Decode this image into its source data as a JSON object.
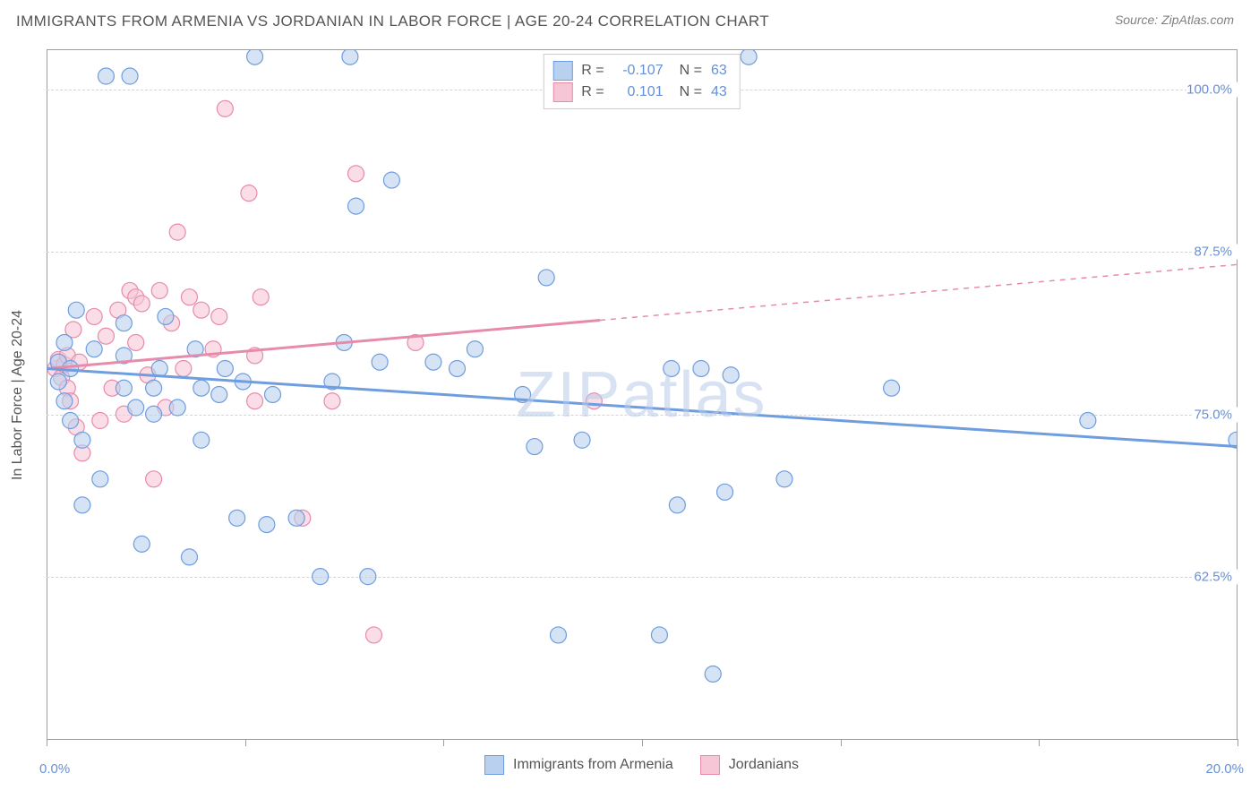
{
  "title": "IMMIGRANTS FROM ARMENIA VS JORDANIAN IN LABOR FORCE | AGE 20-24 CORRELATION CHART",
  "source_label": "Source: ZipAtlas.com",
  "watermark": "ZIPatlas",
  "y_axis_label": "In Labor Force | Age 20-24",
  "x_corner_left": "0.0%",
  "x_corner_right": "20.0%",
  "chart": {
    "type": "scatter",
    "background_color": "#ffffff",
    "grid_color": "#d4d4d4",
    "axis_color": "#9e9e9e",
    "tick_label_color": "#6690d8",
    "y_ticks": [
      {
        "value": 62.5,
        "label": "62.5%"
      },
      {
        "value": 75.0,
        "label": "75.0%"
      },
      {
        "value": 87.5,
        "label": "87.5%"
      },
      {
        "value": 100.0,
        "label": "100.0%"
      }
    ],
    "x_ticks_pct": [
      0,
      16.7,
      33.3,
      50,
      66.7,
      83.3,
      100
    ],
    "xlim": [
      0,
      20
    ],
    "ylim": [
      50,
      103
    ],
    "marker_radius": 9,
    "marker_stroke_width": 1.2,
    "marker_fill_opacity": 0.35,
    "trend_line_width": 3,
    "series": [
      {
        "name": "Immigrants from Armenia",
        "color_stroke": "#6e9de0",
        "color_fill": "#b9d0ee",
        "R": "-0.107",
        "N": "63",
        "trend": {
          "x1": 0,
          "y1": 78.5,
          "x2": 20,
          "y2": 72.5,
          "dashed_from_x": null
        },
        "points": [
          [
            0.2,
            79
          ],
          [
            0.2,
            77.5
          ],
          [
            0.3,
            76
          ],
          [
            0.4,
            74.5
          ],
          [
            0.3,
            80.5
          ],
          [
            0.4,
            78.5
          ],
          [
            0.5,
            83
          ],
          [
            0.6,
            73
          ],
          [
            0.6,
            68
          ],
          [
            0.8,
            80
          ],
          [
            0.9,
            70
          ],
          [
            1.0,
            101
          ],
          [
            1.3,
            82
          ],
          [
            1.3,
            79.5
          ],
          [
            1.3,
            77
          ],
          [
            1.4,
            101
          ],
          [
            1.5,
            75.5
          ],
          [
            1.6,
            65
          ],
          [
            1.8,
            77
          ],
          [
            1.8,
            75
          ],
          [
            1.9,
            78.5
          ],
          [
            2.0,
            82.5
          ],
          [
            2.2,
            75.5
          ],
          [
            2.4,
            64
          ],
          [
            2.5,
            80
          ],
          [
            2.6,
            77
          ],
          [
            2.6,
            73
          ],
          [
            2.9,
            76.5
          ],
          [
            3.0,
            78.5
          ],
          [
            3.2,
            67
          ],
          [
            3.3,
            77.5
          ],
          [
            3.5,
            102.5
          ],
          [
            3.7,
            66.5
          ],
          [
            3.8,
            76.5
          ],
          [
            4.2,
            67
          ],
          [
            4.6,
            62.5
          ],
          [
            4.8,
            77.5
          ],
          [
            5.0,
            80.5
          ],
          [
            5.1,
            102.5
          ],
          [
            5.2,
            91
          ],
          [
            5.4,
            62.5
          ],
          [
            5.6,
            79
          ],
          [
            5.8,
            93
          ],
          [
            6.5,
            79
          ],
          [
            6.9,
            78.5
          ],
          [
            7.2,
            80
          ],
          [
            8.0,
            76.5
          ],
          [
            8.2,
            72.5
          ],
          [
            8.4,
            85.5
          ],
          [
            8.6,
            58
          ],
          [
            9.0,
            73
          ],
          [
            10.3,
            58
          ],
          [
            10.5,
            78.5
          ],
          [
            10.6,
            68
          ],
          [
            11.0,
            78.5
          ],
          [
            11.2,
            55
          ],
          [
            11.4,
            69
          ],
          [
            11.5,
            78
          ],
          [
            11.8,
            102.5
          ],
          [
            12.4,
            70
          ],
          [
            14.2,
            77
          ],
          [
            17.5,
            74.5
          ],
          [
            20,
            73
          ]
        ]
      },
      {
        "name": "Jordanians",
        "color_stroke": "#e78bab",
        "color_fill": "#f6c6d6",
        "R": "0.101",
        "N": "43",
        "trend": {
          "x1": 0,
          "y1": 78.5,
          "x2": 20,
          "y2": 86.5,
          "dashed_from_x": 9.3
        },
        "points": [
          [
            0.15,
            78.5
          ],
          [
            0.2,
            79.2
          ],
          [
            0.25,
            77.8
          ],
          [
            0.3,
            78.8
          ],
          [
            0.35,
            79.5
          ],
          [
            0.35,
            77
          ],
          [
            0.4,
            76
          ],
          [
            0.45,
            81.5
          ],
          [
            0.5,
            74
          ],
          [
            0.55,
            79
          ],
          [
            0.6,
            72
          ],
          [
            0.8,
            82.5
          ],
          [
            0.9,
            74.5
          ],
          [
            1.0,
            81
          ],
          [
            1.1,
            77
          ],
          [
            1.2,
            83
          ],
          [
            1.3,
            75
          ],
          [
            1.4,
            84.5
          ],
          [
            1.5,
            84
          ],
          [
            1.5,
            80.5
          ],
          [
            1.6,
            83.5
          ],
          [
            1.7,
            78
          ],
          [
            1.8,
            70
          ],
          [
            1.9,
            84.5
          ],
          [
            2.0,
            75.5
          ],
          [
            2.1,
            82
          ],
          [
            2.2,
            89
          ],
          [
            2.3,
            78.5
          ],
          [
            2.4,
            84
          ],
          [
            2.6,
            83
          ],
          [
            2.8,
            80
          ],
          [
            2.9,
            82.5
          ],
          [
            3.0,
            98.5
          ],
          [
            3.4,
            92
          ],
          [
            3.5,
            76
          ],
          [
            3.5,
            79.5
          ],
          [
            3.6,
            84
          ],
          [
            4.3,
            67
          ],
          [
            4.8,
            76
          ],
          [
            5.2,
            93.5
          ],
          [
            5.5,
            58
          ],
          [
            6.2,
            80.5
          ],
          [
            9.2,
            76
          ]
        ]
      }
    ]
  },
  "legend_top": {
    "rows": [
      {
        "swatch_stroke": "#6e9de0",
        "swatch_fill": "#b9d0ee",
        "r_label": "R =",
        "r_val": "-0.107",
        "n_label": "N =",
        "n_val": "63"
      },
      {
        "swatch_stroke": "#e78bab",
        "swatch_fill": "#f6c6d6",
        "r_label": "R =",
        "r_val": "0.101",
        "n_label": "N =",
        "n_val": "43"
      }
    ]
  },
  "legend_bottom": [
    {
      "swatch_stroke": "#6e9de0",
      "swatch_fill": "#b9d0ee",
      "label": "Immigrants from Armenia"
    },
    {
      "swatch_stroke": "#e78bab",
      "swatch_fill": "#f6c6d6",
      "label": "Jordanians"
    }
  ]
}
